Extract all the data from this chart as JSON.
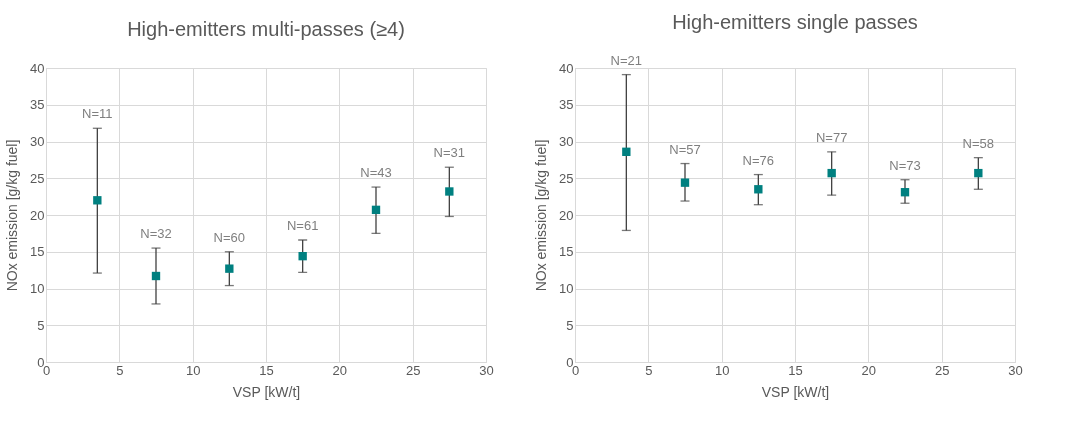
{
  "chart_data": [
    {
      "type": "scatter",
      "title": "High-emitters multi-passes (≥4)",
      "xlabel": "VSP [kW/t]",
      "ylabel": "NOx emission [g/kg fuel]",
      "x": [
        3.5,
        7.5,
        12.5,
        17.5,
        22.5,
        27.5
      ],
      "series": [
        {
          "color": "#008080",
          "values": [
            22.0,
            11.7,
            12.7,
            14.4,
            20.7,
            23.2
          ],
          "errors": [
            [
              12.1,
              31.8
            ],
            [
              7.9,
              15.5
            ],
            [
              10.4,
              15.0
            ],
            [
              12.2,
              16.6
            ],
            [
              17.5,
              23.8
            ],
            [
              19.8,
              26.5
            ]
          ]
        }
      ],
      "annotations": [
        {
          "text": "N=11",
          "x": 3.5,
          "y": 31.8
        },
        {
          "text": "N=32",
          "x": 7.5,
          "y": 15.5
        },
        {
          "text": "N=60",
          "x": 12.5,
          "y": 15.0
        },
        {
          "text": "N=61",
          "x": 17.5,
          "y": 16.6
        },
        {
          "text": "N=43",
          "x": 22.5,
          "y": 23.8
        },
        {
          "text": "N=31",
          "x": 27.5,
          "y": 26.5
        }
      ],
      "xlim": [
        0,
        30
      ],
      "xticks": [
        0,
        5,
        10,
        15,
        20,
        25,
        30
      ],
      "ylim": [
        0,
        40
      ],
      "yticks": [
        0,
        5,
        10,
        15,
        20,
        25,
        30,
        35,
        40
      ],
      "grid": true,
      "marker": "square"
    },
    {
      "type": "scatter",
      "title": "High-emitters single passes",
      "xlabel": "VSP [kW/t]",
      "ylabel": "NOx emission [g/kg fuel]",
      "x": [
        3.5,
        7.5,
        12.5,
        17.5,
        22.5,
        27.5
      ],
      "series": [
        {
          "color": "#008080",
          "values": [
            28.6,
            24.4,
            23.5,
            25.7,
            23.1,
            25.7
          ],
          "errors": [
            [
              17.9,
              39.1
            ],
            [
              21.9,
              27.0
            ],
            [
              21.4,
              25.5
            ],
            [
              22.7,
              28.6
            ],
            [
              21.6,
              24.8
            ],
            [
              23.5,
              27.8
            ]
          ]
        }
      ],
      "annotations": [
        {
          "text": "N=21",
          "x": 3.5,
          "y": 39.1
        },
        {
          "text": "N=57",
          "x": 7.5,
          "y": 27.0
        },
        {
          "text": "N=76",
          "x": 12.5,
          "y": 25.5
        },
        {
          "text": "N=77",
          "x": 17.5,
          "y": 28.6
        },
        {
          "text": "N=73",
          "x": 22.5,
          "y": 24.8
        },
        {
          "text": "N=58",
          "x": 27.5,
          "y": 27.8
        }
      ],
      "xlim": [
        0,
        30
      ],
      "xticks": [
        0,
        5,
        10,
        15,
        20,
        25,
        30
      ],
      "ylim": [
        0,
        40
      ],
      "yticks": [
        0,
        5,
        10,
        15,
        20,
        25,
        30,
        35,
        40
      ],
      "grid": true,
      "marker": "square"
    }
  ]
}
